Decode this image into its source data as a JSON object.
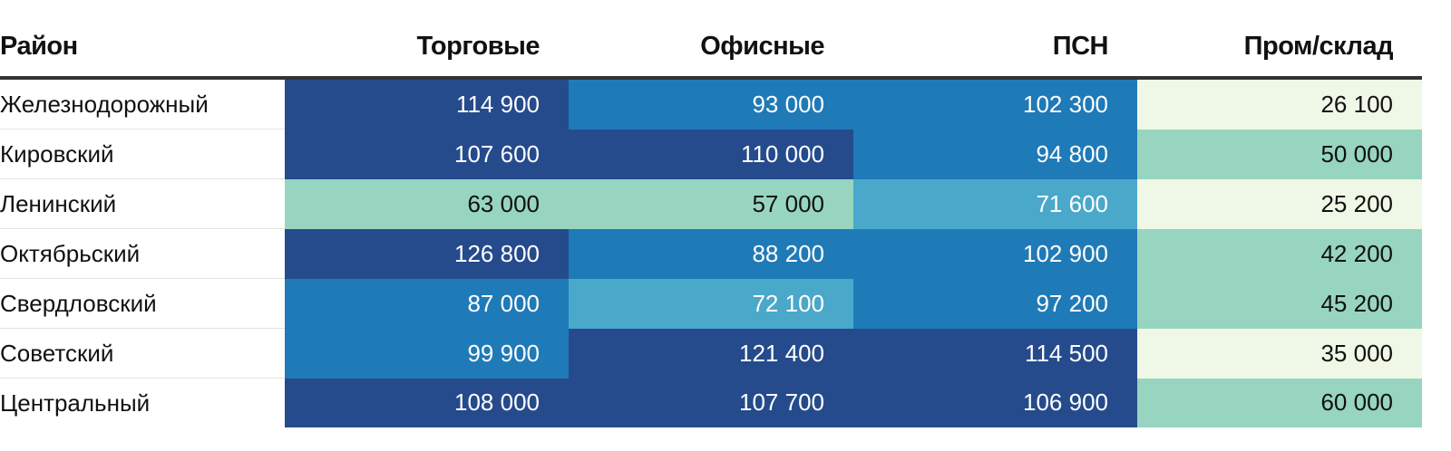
{
  "chart_data": {
    "type": "table",
    "columns": [
      "Район",
      "Торговые",
      "Офисные",
      "ПСН",
      "Пром/склад"
    ],
    "rows": [
      {
        "district": "Железнодорожный",
        "values": [
          "114 900",
          "93 000",
          "102 300",
          "26 100"
        ],
        "numeric": [
          114900,
          93000,
          102300,
          26100
        ]
      },
      {
        "district": "Кировский",
        "values": [
          "107 600",
          "110 000",
          "94 800",
          "50 000"
        ],
        "numeric": [
          107600,
          110000,
          94800,
          50000
        ]
      },
      {
        "district": "Ленинский",
        "values": [
          "63 000",
          "57 000",
          "71 600",
          "25 200"
        ],
        "numeric": [
          63000,
          57000,
          71600,
          25200
        ]
      },
      {
        "district": "Октябрьский",
        "values": [
          "126 800",
          "88 200",
          "102 900",
          "42 200"
        ],
        "numeric": [
          126800,
          88200,
          102900,
          42200
        ]
      },
      {
        "district": "Свердловский",
        "values": [
          "87 000",
          "72 100",
          "97 200",
          "45 200"
        ],
        "numeric": [
          87000,
          72100,
          97200,
          45200
        ]
      },
      {
        "district": "Советский",
        "values": [
          "99 900",
          "121 400",
          "114 500",
          "35 000"
        ],
        "numeric": [
          99900,
          121400,
          114500,
          35000
        ]
      },
      {
        "district": "Центральный",
        "values": [
          "108 000",
          "107 700",
          "106 900",
          "60 000"
        ],
        "numeric": [
          108000,
          107700,
          106900,
          60000
        ]
      }
    ],
    "color_scale": [
      {
        "min": 0,
        "max": 40000,
        "color": "#eff8e6",
        "text_color": "#111111"
      },
      {
        "min": 40000,
        "max": 70000,
        "color": "#97d5c0",
        "text_color": "#111111"
      },
      {
        "min": 70000,
        "max": 85000,
        "color": "#4aa8ca",
        "text_color": "#ffffff"
      },
      {
        "min": 85000,
        "max": 105000,
        "color": "#1f7ab8",
        "text_color": "#ffffff"
      },
      {
        "min": 105000,
        "max": 1000000,
        "color": "#254b8c",
        "text_color": "#ffffff"
      }
    ]
  }
}
